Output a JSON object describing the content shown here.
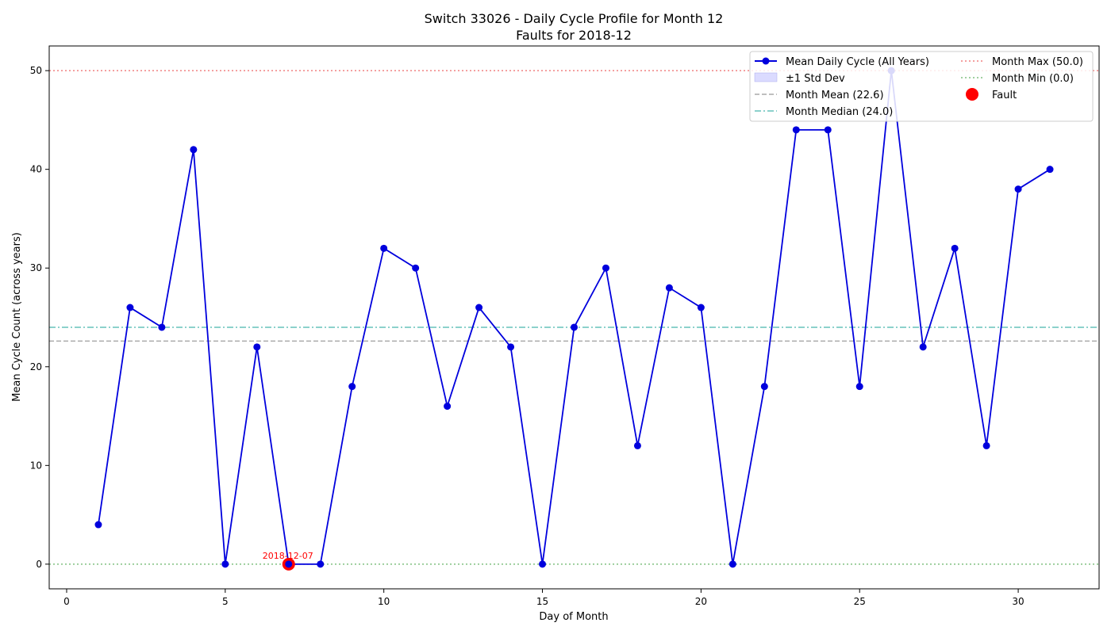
{
  "chart_data": {
    "type": "line",
    "title": "Switch 33026 - Daily Cycle Profile for Month 12",
    "subtitle": "Faults for 2018-12",
    "xlabel": "Day of Month",
    "ylabel": "Mean Cycle Count (across years)",
    "xlim": [
      -0.55,
      32.55
    ],
    "ylim": [
      -2.5,
      52.5
    ],
    "x_ticks": [
      0,
      5,
      10,
      15,
      20,
      25,
      30
    ],
    "y_ticks": [
      0,
      10,
      20,
      30,
      40,
      50
    ],
    "grid": false,
    "legend_position": "top-right",
    "series": [
      {
        "name": "Mean Daily Cycle (All Years)",
        "color": "#0000dd",
        "marker": "circle",
        "x": [
          1,
          2,
          3,
          4,
          5,
          6,
          7,
          8,
          9,
          10,
          11,
          12,
          13,
          14,
          15,
          16,
          17,
          18,
          19,
          20,
          21,
          22,
          23,
          24,
          25,
          26,
          27,
          28,
          29,
          30,
          31
        ],
        "values": [
          4,
          26,
          24,
          42,
          0,
          22,
          0,
          0,
          18,
          32,
          30,
          16,
          26,
          22,
          0,
          24,
          30,
          12,
          28,
          26,
          0,
          18,
          44,
          44,
          18,
          50,
          22,
          32,
          12,
          38,
          40
        ]
      }
    ],
    "std_band": {
      "name": "±1 Std Dev",
      "color": "#ccccff"
    },
    "reference_lines": [
      {
        "name": "Month Mean (22.6)",
        "value": 22.6,
        "color": "#aaaaaa",
        "style": "dashed"
      },
      {
        "name": "Month Median (24.0)",
        "value": 24.0,
        "color": "#66c2bb",
        "style": "dashdot"
      },
      {
        "name": "Month Max (50.0)",
        "value": 50.0,
        "color": "#f08080",
        "style": "dotted"
      },
      {
        "name": "Month Min (0.0)",
        "value": 0.0,
        "color": "#80c080",
        "style": "dotted"
      }
    ],
    "faults": {
      "name": "Fault",
      "color": "#ff0000",
      "points": [
        {
          "x": 7,
          "y": 0,
          "label": "2018-12-07"
        }
      ]
    }
  }
}
